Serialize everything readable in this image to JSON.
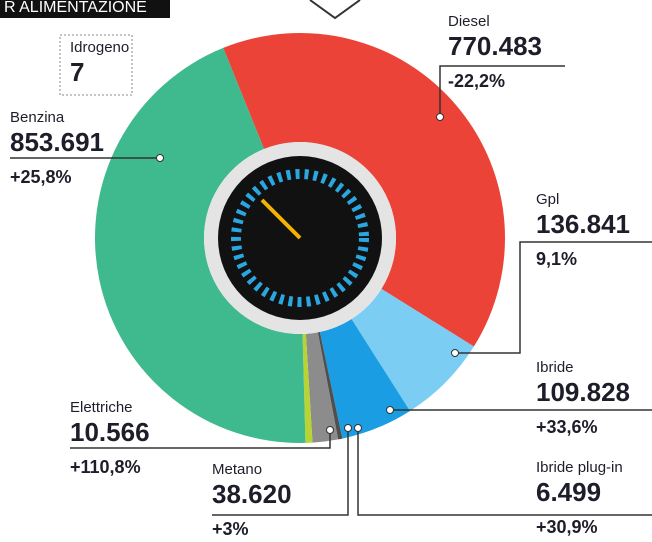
{
  "chart_data": {
    "type": "pie",
    "title": "R ALIMENTAZIONE",
    "categories": [
      "Diesel",
      "Gpl",
      "Ibride",
      "Ibride plug-in",
      "Metano",
      "Elettriche",
      "Idrogeno",
      "Benzina"
    ],
    "values": [
      770483,
      136841,
      109828,
      6499,
      38620,
      10566,
      7,
      853691
    ],
    "value_labels": [
      "770.483",
      "136.841",
      "109.828",
      "6.499",
      "38.620",
      "10.566",
      "7",
      "853.691"
    ],
    "changes": [
      "-22,2%",
      "9,1%",
      "+33,6%",
      "+30,9%",
      "+3%",
      "+110,8%",
      null,
      "+25,8%"
    ],
    "colors": [
      "#ec4338",
      "#7ccdf3",
      "#1a9de2",
      "#4f4f4f",
      "#8c8c8c",
      "#b7d433",
      "#cccccc",
      "#3fba8e"
    ]
  }
}
